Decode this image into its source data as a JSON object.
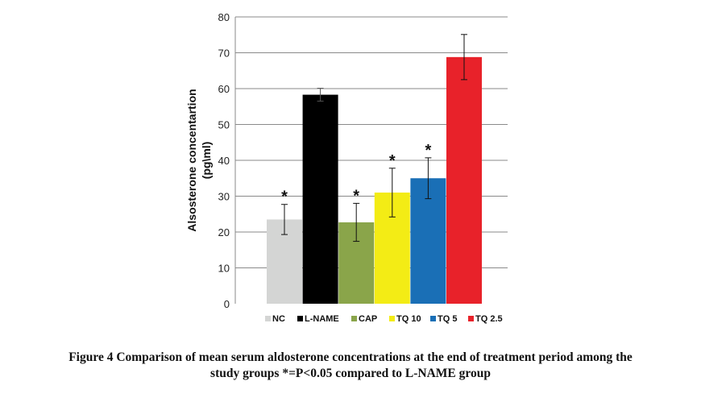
{
  "chart_data": {
    "type": "bar",
    "ylabel_line1": "Alsosterone concentartion",
    "ylabel_line2": "(pg\\ml)",
    "ylim": [
      0,
      80
    ],
    "yticks": [
      0,
      10,
      20,
      30,
      40,
      50,
      60,
      70,
      80
    ],
    "grid": true,
    "legend": "bottom",
    "categories": [
      "NC",
      "L-NAME",
      "CAP",
      "TQ 10",
      "TQ 5",
      "TQ 2.5"
    ],
    "values": [
      23.5,
      58.3,
      22.7,
      31.0,
      35.0,
      68.8
    ],
    "errors": [
      4.2,
      1.8,
      5.3,
      6.8,
      5.7,
      6.3
    ],
    "significant": [
      true,
      false,
      true,
      true,
      true,
      false
    ],
    "significance_marker": "*",
    "colors": [
      "#d4d5d4",
      "#000000",
      "#8aa54a",
      "#f3ec15",
      "#1a6fb6",
      "#e8222a"
    ]
  },
  "caption": {
    "line1": "Figure 4 Comparison of mean serum aldosterone concentrations at the end of treatment period among the",
    "line2": "study groups *=P<0.05 compared to L-NAME group"
  }
}
